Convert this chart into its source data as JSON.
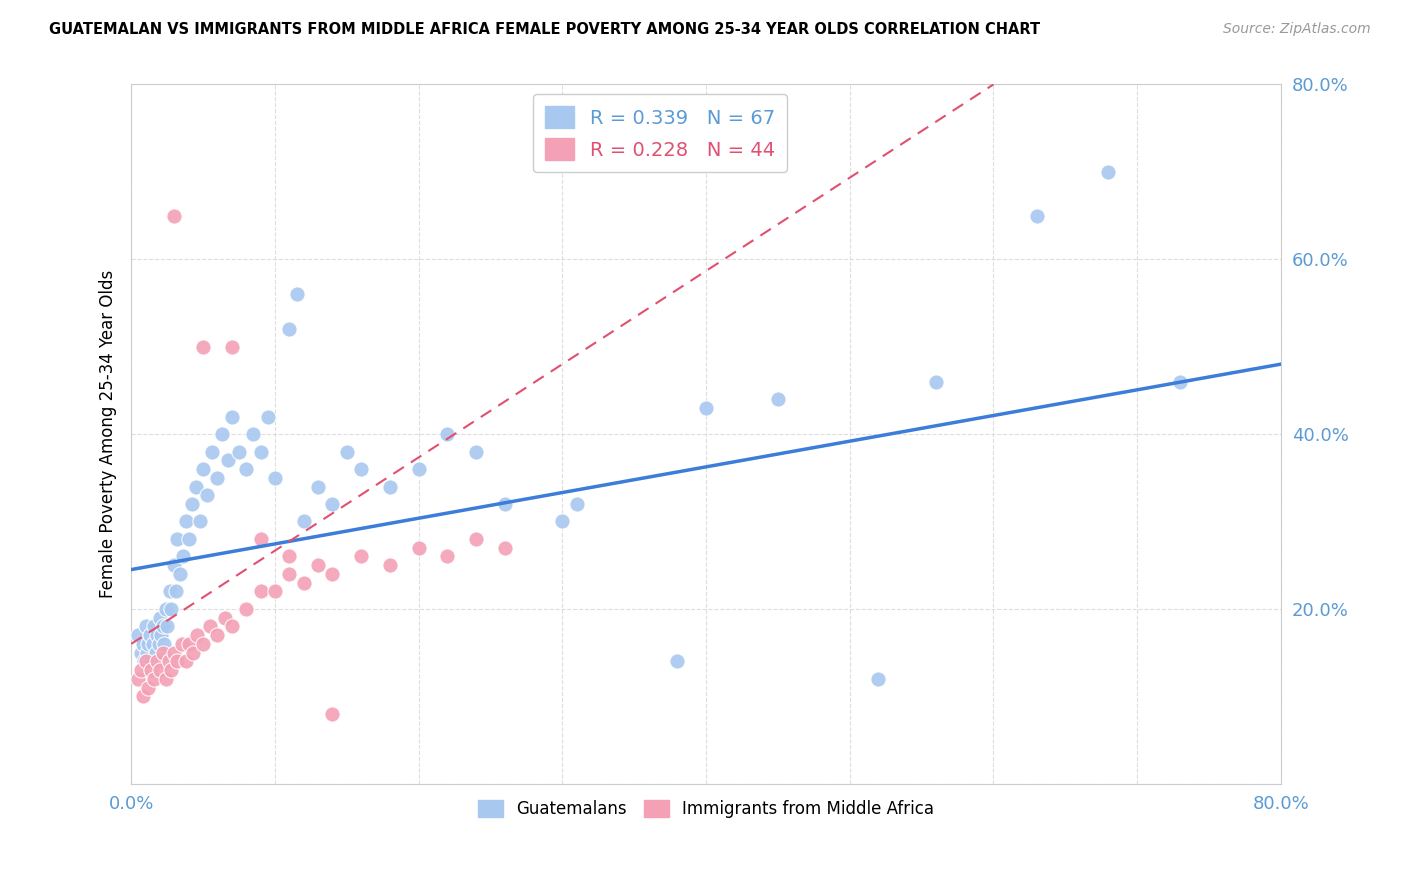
{
  "title": "GUATEMALAN VS IMMIGRANTS FROM MIDDLE AFRICA FEMALE POVERTY AMONG 25-34 YEAR OLDS CORRELATION CHART",
  "source": "Source: ZipAtlas.com",
  "ylabel": "Female Poverty Among 25-34 Year Olds",
  "xlim": [
    0.0,
    0.8
  ],
  "ylim": [
    0.0,
    0.8
  ],
  "legend1_R": "0.339",
  "legend1_N": "67",
  "legend2_R": "0.228",
  "legend2_N": "44",
  "blue_color": "#A8C8F0",
  "pink_color": "#F4A0B5",
  "line_blue": "#3B7DD8",
  "line_pink": "#E05070",
  "background_color": "#FFFFFF",
  "grid_color": "#DDDDDD",
  "tick_color": "#5B9BD5",
  "blue_line_x0": 0.0,
  "blue_line_y0": 0.245,
  "blue_line_x1": 0.8,
  "blue_line_y1": 0.48,
  "pink_line_x0": 0.0,
  "pink_line_y0": 0.16,
  "pink_line_x1": 0.6,
  "pink_line_y1": 0.8,
  "guat_x": [
    0.005,
    0.007,
    0.008,
    0.009,
    0.01,
    0.011,
    0.012,
    0.013,
    0.014,
    0.015,
    0.016,
    0.017,
    0.018,
    0.019,
    0.02,
    0.021,
    0.022,
    0.023,
    0.024,
    0.025,
    0.027,
    0.028,
    0.03,
    0.031,
    0.032,
    0.034,
    0.036,
    0.038,
    0.04,
    0.042,
    0.045,
    0.048,
    0.05,
    0.053,
    0.056,
    0.06,
    0.063,
    0.067,
    0.07,
    0.075,
    0.08,
    0.085,
    0.09,
    0.095,
    0.1,
    0.11,
    0.115,
    0.12,
    0.13,
    0.14,
    0.15,
    0.16,
    0.18,
    0.2,
    0.22,
    0.24,
    0.26,
    0.3,
    0.31,
    0.38,
    0.4,
    0.45,
    0.52,
    0.56,
    0.63,
    0.68,
    0.73
  ],
  "guat_y": [
    0.17,
    0.15,
    0.16,
    0.14,
    0.18,
    0.15,
    0.16,
    0.17,
    0.14,
    0.16,
    0.18,
    0.15,
    0.17,
    0.16,
    0.19,
    0.17,
    0.18,
    0.16,
    0.2,
    0.18,
    0.22,
    0.2,
    0.25,
    0.22,
    0.28,
    0.24,
    0.26,
    0.3,
    0.28,
    0.32,
    0.34,
    0.3,
    0.36,
    0.33,
    0.38,
    0.35,
    0.4,
    0.37,
    0.42,
    0.38,
    0.36,
    0.4,
    0.38,
    0.42,
    0.35,
    0.52,
    0.56,
    0.3,
    0.34,
    0.32,
    0.38,
    0.36,
    0.34,
    0.36,
    0.4,
    0.38,
    0.32,
    0.3,
    0.32,
    0.14,
    0.43,
    0.44,
    0.12,
    0.46,
    0.65,
    0.7,
    0.46
  ],
  "imm_x": [
    0.005,
    0.007,
    0.008,
    0.01,
    0.012,
    0.014,
    0.016,
    0.018,
    0.02,
    0.022,
    0.024,
    0.026,
    0.028,
    0.03,
    0.032,
    0.035,
    0.038,
    0.04,
    0.043,
    0.046,
    0.05,
    0.055,
    0.06,
    0.065,
    0.07,
    0.08,
    0.09,
    0.1,
    0.11,
    0.12,
    0.13,
    0.14,
    0.16,
    0.18,
    0.2,
    0.22,
    0.24,
    0.26,
    0.03,
    0.05,
    0.07,
    0.09,
    0.11,
    0.14
  ],
  "imm_y": [
    0.12,
    0.13,
    0.1,
    0.14,
    0.11,
    0.13,
    0.12,
    0.14,
    0.13,
    0.15,
    0.12,
    0.14,
    0.13,
    0.15,
    0.14,
    0.16,
    0.14,
    0.16,
    0.15,
    0.17,
    0.16,
    0.18,
    0.17,
    0.19,
    0.18,
    0.2,
    0.22,
    0.22,
    0.24,
    0.23,
    0.25,
    0.24,
    0.26,
    0.25,
    0.27,
    0.26,
    0.28,
    0.27,
    0.65,
    0.5,
    0.5,
    0.28,
    0.26,
    0.08
  ]
}
